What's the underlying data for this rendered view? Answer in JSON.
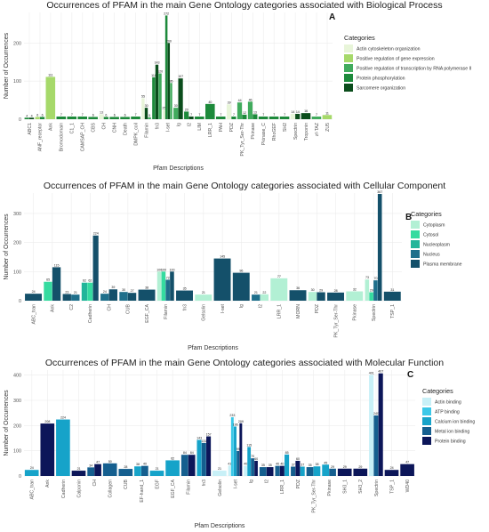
{
  "chart_data": [
    {
      "type": "bar",
      "panel": "A",
      "title": "Occurrences of PFAM in the main Gene Ontology categories associated with Biological Process",
      "xlabel": "Pfam Descriptions",
      "ylabel": "Number of Occurrences",
      "ylim": [
        0,
        280
      ],
      "yticks": [
        0,
        100,
        200
      ],
      "legend_title": "Categories",
      "legend_position": "right",
      "series": [
        {
          "name": "Actin cytoskeleton organization",
          "color": "#e8f5d9"
        },
        {
          "name": "Positive regulation of gene expression",
          "color": "#a6d96a"
        },
        {
          "name": "Positive regulation of transcription by RNA polymerase II",
          "color": "#41ab5d"
        },
        {
          "name": "Protein phosphorylation",
          "color": "#1d8a3b"
        },
        {
          "name": "Sarcomere organization",
          "color": "#0b4d1c"
        }
      ],
      "categories": [
        "ABC1",
        "ANF_receptor",
        "Ank",
        "Bromodomain",
        "C1_1",
        "CAMSAP_CH",
        "CBS",
        "CH",
        "CNH",
        "Death",
        "DMPK_coil",
        "Filamin",
        "fn3",
        "I-set",
        "Ig",
        "I2",
        "LIM",
        "LRR_1",
        "PAH",
        "PDZ",
        "PK_Tyr_Ser-Thr",
        "Pkinase",
        "Pkinase_C",
        "RhoGEF",
        "SH2",
        "Spectrin",
        "Troponin",
        "zf-TAZ",
        "ZU5"
      ],
      "xtick_labels": [
        "ABC1",
        "ANF_receptor",
        "Ank",
        "Bromodomain",
        "C1_1",
        "CAMSAP_CH",
        "CBS",
        "CH",
        "CNH",
        "Death",
        "DMPK_coil",
        "Filamin",
        "fn3",
        "I-set",
        "Ig",
        "I2",
        "LIM",
        "LRR_1",
        "PAH",
        "PDZ",
        "PK_Tyr_Ser-Thr",
        "Pkinase",
        "Pkinase_C",
        "RhoGEF",
        "SH2",
        "Spectrin",
        "Troponin",
        "zf-TAZ",
        "ZU5"
      ],
      "bars": [
        {
          "cat": 0,
          "s": 3,
          "value": 4
        },
        {
          "cat": 0,
          "s": 4,
          "value": 4
        },
        {
          "cat": 1,
          "s": 1,
          "value": 6
        },
        {
          "cat": 1,
          "s": 3,
          "value": 6
        },
        {
          "cat": 2,
          "s": 1,
          "value": 111
        },
        {
          "cat": 3,
          "s": 3,
          "value": 7
        },
        {
          "cat": 4,
          "s": 3,
          "value": 7
        },
        {
          "cat": 5,
          "s": 3,
          "value": 7
        },
        {
          "cat": 6,
          "s": 3,
          "value": 6
        },
        {
          "cat": 7,
          "s": 0,
          "value": 13
        },
        {
          "cat": 7,
          "s": 3,
          "value": 6
        },
        {
          "cat": 8,
          "s": 3,
          "value": 6
        },
        {
          "cat": 9,
          "s": 3,
          "value": 6
        },
        {
          "cat": 10,
          "s": 3,
          "value": 7
        },
        {
          "cat": 11,
          "s": 0,
          "value": 55
        },
        {
          "cat": 11,
          "s": 4,
          "value": 30
        },
        {
          "cat": 11,
          "s": 2,
          "value": 5
        },
        {
          "cat": 12,
          "s": 3,
          "value": 110
        },
        {
          "cat": 12,
          "s": 4,
          "value": 143
        },
        {
          "cat": 12,
          "s": 2,
          "value": 120
        },
        {
          "cat": 13,
          "s": 0,
          "value": 25
        },
        {
          "cat": 13,
          "s": 3,
          "value": 272
        },
        {
          "cat": 13,
          "s": 4,
          "value": 200
        },
        {
          "cat": 13,
          "s": 2,
          "value": 95
        },
        {
          "cat": 14,
          "s": 2,
          "value": 30
        },
        {
          "cat": 14,
          "s": 4,
          "value": 107
        },
        {
          "cat": 15,
          "s": 3,
          "value": 20
        },
        {
          "cat": 15,
          "s": 4,
          "value": 7
        },
        {
          "cat": 16,
          "s": 3,
          "value": 7
        },
        {
          "cat": 17,
          "s": 3,
          "value": 40
        },
        {
          "cat": 18,
          "s": 3,
          "value": 7
        },
        {
          "cat": 19,
          "s": 0,
          "value": 39
        },
        {
          "cat": 19,
          "s": 3,
          "value": 7
        },
        {
          "cat": 20,
          "s": 2,
          "value": 44
        },
        {
          "cat": 20,
          "s": 3,
          "value": 12
        },
        {
          "cat": 21,
          "s": 2,
          "value": 46
        },
        {
          "cat": 21,
          "s": 3,
          "value": 13
        },
        {
          "cat": 22,
          "s": 3,
          "value": 7
        },
        {
          "cat": 23,
          "s": 3,
          "value": 7
        },
        {
          "cat": 24,
          "s": 3,
          "value": 7
        },
        {
          "cat": 25,
          "s": 0,
          "value": 14
        },
        {
          "cat": 25,
          "s": 4,
          "value": 14
        },
        {
          "cat": 26,
          "s": 4,
          "value": 16
        },
        {
          "cat": 27,
          "s": 2,
          "value": 7
        },
        {
          "cat": 28,
          "s": 1,
          "value": 11
        }
      ]
    },
    {
      "type": "bar",
      "panel": "B",
      "title": "Occurrences of PFAM in the main Gene Ontology categories associated with Cellular Component",
      "xlabel": "Pfam Descriptions",
      "ylabel": "Number of Occurrences",
      "ylim": [
        0,
        370
      ],
      "yticks": [
        0,
        100,
        200,
        300
      ],
      "legend_title": "Categories",
      "legend_position": "right",
      "series": [
        {
          "name": "Cytoplasm",
          "color": "#b2f0d4"
        },
        {
          "name": "Cytosol",
          "color": "#35dba0"
        },
        {
          "name": "Nucleoplasm",
          "color": "#22b59a"
        },
        {
          "name": "Nucleus",
          "color": "#1f6f8b"
        },
        {
          "name": "Plasma membrane",
          "color": "#14506a"
        }
      ],
      "categories": [
        "ABC_tran",
        "Ank",
        "C2",
        "Cadherin",
        "CH",
        "CUB",
        "EGF_CA",
        "Filamin",
        "fn3",
        "Gelsolin",
        "I-set",
        "Ig",
        "I2",
        "LRR_1",
        "MORN",
        "PDZ",
        "PK_Tyr_Ser-Thr",
        "Pkinase",
        "Spectrin",
        "TSP_1"
      ],
      "xtick_labels": [
        "ABC_tran",
        "Ank",
        "C2",
        "Cadherin",
        "CH",
        "CUB",
        "EGF_CA",
        "Filamin",
        "fn3",
        "Gelsolin",
        "I-set",
        "Ig",
        "I2",
        "LRR_1",
        "MORN",
        "PDZ",
        "PK_Tyr_Ser-Thr",
        "Pkinase",
        "Spectrin",
        "TSP_1"
      ],
      "bars": [
        {
          "cat": 0,
          "s": 4,
          "value": 24
        },
        {
          "cat": 1,
          "s": 1,
          "value": 65
        },
        {
          "cat": 1,
          "s": 4,
          "value": 115
        },
        {
          "cat": 2,
          "s": 4,
          "value": 23
        },
        {
          "cat": 2,
          "s": 3,
          "value": 21
        },
        {
          "cat": 3,
          "s": 2,
          "value": 62
        },
        {
          "cat": 3,
          "s": 1,
          "value": 62
        },
        {
          "cat": 3,
          "s": 4,
          "value": 224
        },
        {
          "cat": 4,
          "s": 3,
          "value": 24
        },
        {
          "cat": 4,
          "s": 4,
          "value": 39
        },
        {
          "cat": 5,
          "s": 3,
          "value": 30
        },
        {
          "cat": 5,
          "s": 4,
          "value": 27
        },
        {
          "cat": 6,
          "s": 4,
          "value": 38
        },
        {
          "cat": 7,
          "s": 0,
          "value": 100
        },
        {
          "cat": 7,
          "s": 1,
          "value": 100
        },
        {
          "cat": 7,
          "s": 3,
          "value": 72
        },
        {
          "cat": 7,
          "s": 4,
          "value": 100
        },
        {
          "cat": 8,
          "s": 4,
          "value": 35
        },
        {
          "cat": 9,
          "s": 0,
          "value": 21
        },
        {
          "cat": 10,
          "s": 4,
          "value": 145
        },
        {
          "cat": 11,
          "s": 4,
          "value": 96
        },
        {
          "cat": 12,
          "s": 3,
          "value": 21
        },
        {
          "cat": 12,
          "s": 0,
          "value": 22
        },
        {
          "cat": 13,
          "s": 0,
          "value": 77
        },
        {
          "cat": 14,
          "s": 4,
          "value": 36
        },
        {
          "cat": 15,
          "s": 0,
          "value": 30
        },
        {
          "cat": 15,
          "s": 4,
          "value": 29
        },
        {
          "cat": 16,
          "s": 4,
          "value": 28
        },
        {
          "cat": 17,
          "s": 0,
          "value": 32
        },
        {
          "cat": 18,
          "s": 0,
          "value": 73
        },
        {
          "cat": 18,
          "s": 1,
          "value": 29
        },
        {
          "cat": 18,
          "s": 3,
          "value": 70
        },
        {
          "cat": 18,
          "s": 4,
          "value": 367
        },
        {
          "cat": 19,
          "s": 4,
          "value": 31
        }
      ]
    },
    {
      "type": "bar",
      "panel": "C",
      "title": "Occurrences of PFAM in the main Gene Ontology categories associated with Molecular Function",
      "xlabel": "Pfam Descriptions",
      "ylabel": "Number of Occurrences",
      "ylim": [
        0,
        420
      ],
      "yticks": [
        0,
        100,
        200,
        300,
        400
      ],
      "legend_title": "Categories",
      "legend_position": "right",
      "series": [
        {
          "name": "Actin binding",
          "color": "#c8f0f7"
        },
        {
          "name": "ATP binding",
          "color": "#3bc8e8"
        },
        {
          "name": "Calcium ion binding",
          "color": "#16a3c9"
        },
        {
          "name": "Metal ion binding",
          "color": "#155f8f"
        },
        {
          "name": "Protein binding",
          "color": "#0c1659"
        }
      ],
      "categories": [
        "ABC_tran",
        "Ank",
        "Cadherin",
        "Calponin",
        "CH",
        "Collagen",
        "CUB",
        "EF-hand_1",
        "EGF",
        "EGF_CA",
        "Filamin",
        "fn3",
        "Gelsolin",
        "I-set",
        "Ig",
        "I2",
        "LRR_1",
        "PDZ",
        "PK_Tyr_Ser-Thr",
        "Pkinase",
        "SH3_1",
        "SH3_2",
        "Spectrin",
        "TSP_1",
        "WD40"
      ],
      "xtick_labels": [
        "ABC_tran",
        "Ank",
        "Cadherin",
        "Calponin",
        "CH",
        "Collagen",
        "CUB",
        "EF-hand_1",
        "EGF",
        "EGF_CA",
        "Filamin",
        "fn3",
        "Gelsolin",
        "I-set",
        "Ig",
        "I2",
        "LRR_1",
        "PDZ",
        "PK_Tyr_Ser-Thr",
        "Pkinase",
        "SH3_1",
        "SH3_2",
        "Spectrin",
        "TSP_1",
        "WD40"
      ],
      "bars": [
        {
          "cat": 0,
          "s": 2,
          "value": 24
        },
        {
          "cat": 1,
          "s": 4,
          "value": 208
        },
        {
          "cat": 2,
          "s": 2,
          "value": 224
        },
        {
          "cat": 3,
          "s": 4,
          "value": 21
        },
        {
          "cat": 4,
          "s": 3,
          "value": 34
        },
        {
          "cat": 4,
          "s": 4,
          "value": 47
        },
        {
          "cat": 5,
          "s": 3,
          "value": 50
        },
        {
          "cat": 6,
          "s": 3,
          "value": 28
        },
        {
          "cat": 7,
          "s": 2,
          "value": 38
        },
        {
          "cat": 7,
          "s": 3,
          "value": 40
        },
        {
          "cat": 8,
          "s": 2,
          "value": 21
        },
        {
          "cat": 9,
          "s": 2,
          "value": 62
        },
        {
          "cat": 10,
          "s": 3,
          "value": 84
        },
        {
          "cat": 10,
          "s": 4,
          "value": 84
        },
        {
          "cat": 11,
          "s": 2,
          "value": 143
        },
        {
          "cat": 11,
          "s": 3,
          "value": 131
        },
        {
          "cat": 11,
          "s": 4,
          "value": 157
        },
        {
          "cat": 12,
          "s": 0,
          "value": 21
        },
        {
          "cat": 13,
          "s": 0,
          "value": 41
        },
        {
          "cat": 13,
          "s": 1,
          "value": 233
        },
        {
          "cat": 13,
          "s": 2,
          "value": 196
        },
        {
          "cat": 13,
          "s": 3,
          "value": 99
        },
        {
          "cat": 13,
          "s": 4,
          "value": 209
        },
        {
          "cat": 14,
          "s": 0,
          "value": 40
        },
        {
          "cat": 14,
          "s": 2,
          "value": 115
        },
        {
          "cat": 14,
          "s": 3,
          "value": 70
        },
        {
          "cat": 14,
          "s": 4,
          "value": 60
        },
        {
          "cat": 15,
          "s": 3,
          "value": 35
        },
        {
          "cat": 15,
          "s": 4,
          "value": 35
        },
        {
          "cat": 16,
          "s": 3,
          "value": 40
        },
        {
          "cat": 16,
          "s": 4,
          "value": 40
        },
        {
          "cat": 16,
          "s": 2,
          "value": 85
        },
        {
          "cat": 17,
          "s": 3,
          "value": 37
        },
        {
          "cat": 17,
          "s": 4,
          "value": 60
        },
        {
          "cat": 17,
          "s": 2,
          "value": 37
        },
        {
          "cat": 18,
          "s": 3,
          "value": 35
        },
        {
          "cat": 18,
          "s": 2,
          "value": 38
        },
        {
          "cat": 19,
          "s": 2,
          "value": 45
        },
        {
          "cat": 19,
          "s": 3,
          "value": 29
        },
        {
          "cat": 20,
          "s": 4,
          "value": 29
        },
        {
          "cat": 21,
          "s": 4,
          "value": 29
        },
        {
          "cat": 22,
          "s": 0,
          "value": 401
        },
        {
          "cat": 22,
          "s": 3,
          "value": 240
        },
        {
          "cat": 22,
          "s": 4,
          "value": 407
        },
        {
          "cat": 23,
          "s": 4,
          "value": 24
        },
        {
          "cat": 24,
          "s": 4,
          "value": 47
        }
      ]
    }
  ]
}
